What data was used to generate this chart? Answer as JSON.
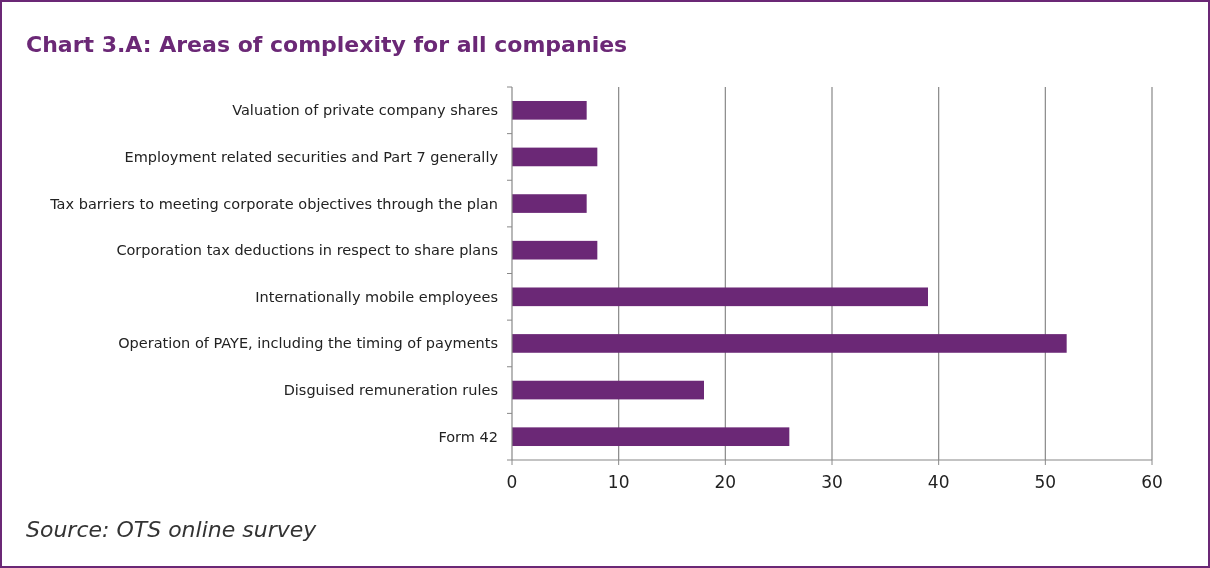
{
  "chart_data": {
    "type": "bar",
    "orientation": "horizontal",
    "title": "Chart 3.A: Areas of complexity for all companies",
    "categories": [
      "Valuation of private company shares",
      "Employment related securities and Part 7 generally",
      "Tax barriers to meeting corporate objectives through the plan",
      "Corporation tax deductions in respect to share plans",
      "Internationally mobile employees",
      "Operation of PAYE, including the timing of payments",
      "Disguised remuneration rules",
      "Form 42"
    ],
    "values": [
      7,
      8,
      7,
      8,
      39,
      52,
      18,
      26
    ],
    "color": "#6b2876",
    "xlim": [
      0,
      60
    ],
    "xticks": [
      0,
      10,
      20,
      30,
      40,
      50,
      60
    ],
    "grid": "x",
    "annotations": [
      "Source: OTS online survey"
    ]
  }
}
